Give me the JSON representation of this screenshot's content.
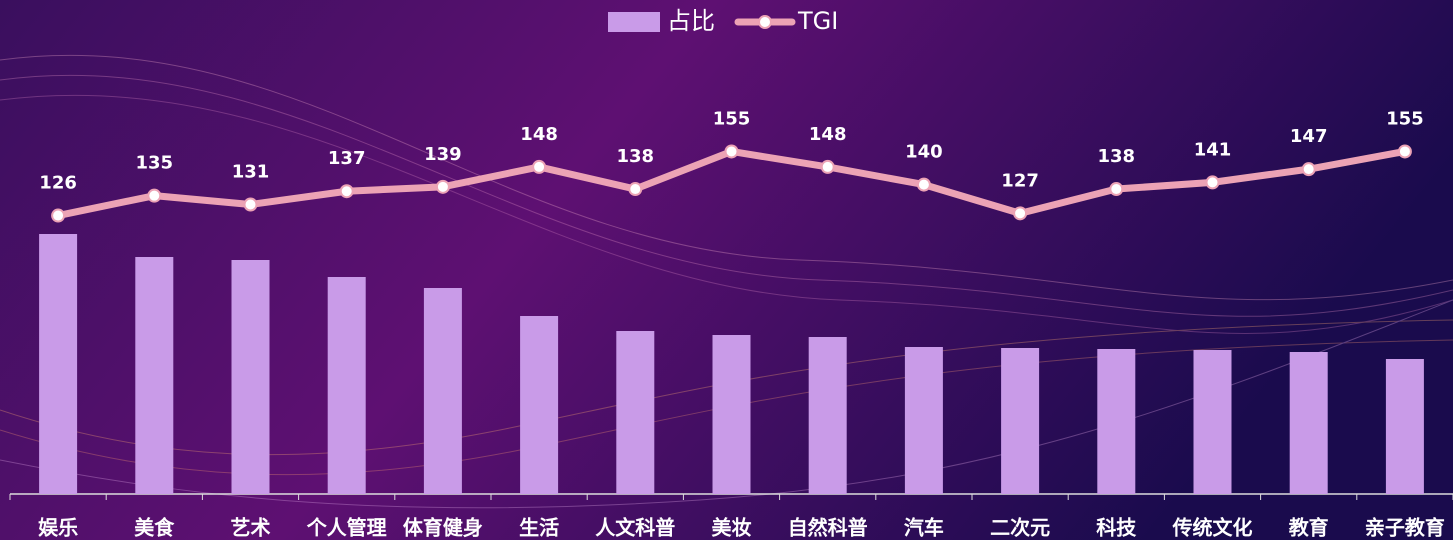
{
  "chart_data": {
    "type": "bar",
    "categories": [
      "娱乐",
      "美食",
      "艺术",
      "个人管理",
      "体育健身",
      "生活",
      "人文科普",
      "美妆",
      "自然科普",
      "汽车",
      "二次元",
      "科技",
      "传统文化",
      "教育",
      "亲子教育"
    ],
    "series": [
      {
        "name": "占比",
        "type": "bar",
        "color": "#c99be8",
        "values": [
          26.0,
          23.7,
          23.4,
          21.7,
          20.6,
          17.8,
          16.3,
          15.9,
          15.7,
          14.7,
          14.6,
          14.5,
          14.4,
          14.2,
          13.5
        ]
      },
      {
        "name": "TGI",
        "type": "line",
        "axis": "y2",
        "color": "#eca3b5",
        "values": [
          126,
          135,
          131,
          137,
          139,
          148,
          138,
          155,
          148,
          140,
          127,
          138,
          141,
          147,
          155
        ]
      }
    ],
    "ylim": [
      0,
      40
    ],
    "y2lim": [
      0,
      181
    ],
    "legend": "top"
  }
}
